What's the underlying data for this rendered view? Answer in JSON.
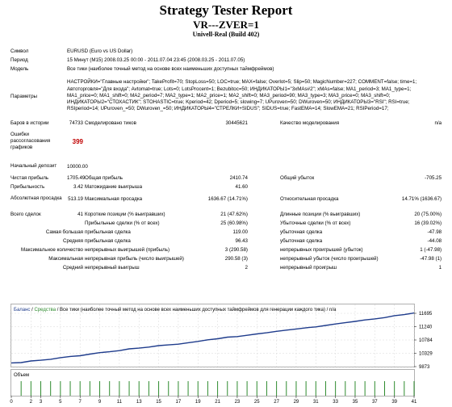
{
  "header": {
    "title": "Strategy Tester Report",
    "expert": "VR---ZVER=1",
    "server": "Univell-Real (Build 402)"
  },
  "report": {
    "symbol_label": "Символ",
    "symbol_value": "EURUSD (Euro vs US Dollar)",
    "period_label": "Период",
    "period_value": "15 Минут (M15) 2008.03.25 00:00 - 2011.07.04 23:45 (2008.03.25 - 2011.07.05)",
    "model_label": "Модель",
    "model_value": "Все тики (наиболее точный метод на основе всех наименьших доступных таймфреймов)",
    "params_label": "Параметры",
    "params_value": "НАСТРОЙКИ=\"Главные настройки\"; TakeProfit=70; StopLoss=50; LOC=true; MAX=false; Overlot=5; Slip=50; MagicNumber=227; COMMENT=false; time=1; Автоторговля=\"Для входа\"; Avtomat=true; Lots=0; LotsProcent=1; Bezubitoc=50; ИНДИКАТОРЫ1=\"3xMAs#2\"; xMAs=false; MA1_period=3; MA1_type=1; MA1_price=0; MA1_shift=0; MA2_period=7; MA2_type=1; MA2_price=1; MA2_shift=0; MA3_period=90; MA3_type=3; MA3_price=0; MA3_shift=0; ИНДИКАТОРЫ2=\"СТОХАСТИК\"; STOHASTIC=true; Kperiod=42; Dperiod=5; slowing=7; UPuroven=50; DWuroven=50; ИНДИКАТОРЫ3=\"RSI\"; RSI=true; RSIperiod=14; UPuroven_=50; DWuroven_=50; ИНДИКАТОРЫ4=\"СТРЕЛКИ+SIDUS\"; SIDUS=true; FastEMA=14; SlowEMA=21; RSIPeriod=17;",
    "bars_label": "Баров в истории",
    "bars_value": "74733",
    "ticks_label": "Смоделировано тиков",
    "ticks_value": "30445621",
    "quality_label": "Качество моделирования",
    "quality_value": "n/a",
    "errors_label": "Ошибки рассогласования графиков",
    "errors_value": "399",
    "deposit_label": "Начальный депозит",
    "deposit_value": "10000.00",
    "net_label": "Чистая прибыль",
    "net_value": "1705.49",
    "gross_profit_label": "Общая прибыль",
    "gross_profit_value": "2410.74",
    "gross_loss_label": "Общий убыток",
    "gross_loss_value": "-705.25",
    "pf_label": "Прибыльность",
    "pf_value": "3.42",
    "expected_label": "Матожидание выигрыша",
    "expected_value": "41.60",
    "abs_dd_label": "Абсолютная просадка",
    "abs_dd_value": "513.19",
    "max_dd_label": "Максимальная просадка",
    "max_dd_value": "1636.67 (14.71%)",
    "rel_dd_label": "Относительная просадка",
    "rel_dd_value": "14.71% (1636.67)",
    "total_label": "Всего сделок",
    "total_value": "41",
    "short_label": "Короткие позиции (% выигравших)",
    "short_value": "21 (47.62%)",
    "long_label": "Длинные позиции (% выигравших)",
    "long_value": "20 (75.00%)",
    "profit_trades_label": "Прибыльные сделки (% от всех)",
    "profit_trades_value": "25 (60.98%)",
    "loss_trades_label": "Убыточные сделки (% от всех)",
    "loss_trades_value": "16 (39.02%)",
    "largest_label": "Самая большая",
    "largest_profit_label": "прибыльная сделка",
    "largest_profit_value": "119.00",
    "largest_loss_label": "убыточная сделка",
    "largest_loss_value": "-47.98",
    "average_label": "Средняя",
    "average_profit_label": "прибыльная сделка",
    "average_profit_value": "96.43",
    "average_loss_label": "убыточная сделка",
    "average_loss_value": "-44.08",
    "max_count_label": "Максимальное количество",
    "max_count_wins_label": "непрерывных выигрышей (прибыль)",
    "max_count_wins_value": "3 (290.58)",
    "max_count_losses_label": "непрерывных проигрышей (убыток)",
    "max_count_losses_value": "1 (-47.98)",
    "max_label": "Максимальная",
    "max_profit_label": "непрерывная прибыль (число выигрышей)",
    "max_profit_value": "290.58 (3)",
    "max_loss_label": "непрерывный убыток (число проигрышей)",
    "max_loss_value": "-47.98 (1)",
    "avg_label": "Средний",
    "avg_wins_label": "непрерывный выигрыш",
    "avg_wins_value": "2",
    "avg_losses_label": "непрерывный проигрыш",
    "avg_losses_value": "1"
  },
  "chart_data": {
    "type": "line",
    "legend_balance": "Баланс",
    "legend_sep": " / ",
    "legend_equity": "Средства",
    "legend_rest": " / Все тики (наиболее точный метод на основе всех наименьших доступных таймфреймов для генерации каждого тика) / n/a",
    "volume_label": "Объем",
    "y_ticks": [
      "11695",
      "11240",
      "10784",
      "10329",
      "9873"
    ],
    "x_ticks": [
      "0",
      "2",
      "3",
      "5",
      "7",
      "9",
      "11",
      "13",
      "15",
      "17",
      "19",
      "21",
      "23",
      "25",
      "27",
      "29",
      "31",
      "33",
      "35",
      "37",
      "39",
      "41"
    ],
    "xlim": [
      0,
      41
    ],
    "ylim": [
      9873,
      11695
    ],
    "balance": [
      10000,
      10010,
      10065,
      10090,
      10125,
      10180,
      10220,
      10245,
      10300,
      10350,
      10380,
      10420,
      10480,
      10505,
      10540,
      10590,
      10615,
      10640,
      10690,
      10735,
      10790,
      10825,
      10880,
      10900,
      10945,
      10990,
      11030,
      11080,
      11120,
      11160,
      11200,
      11230,
      11280,
      11330,
      11375,
      11420,
      11470,
      11505,
      11550,
      11615,
      11650,
      11705
    ],
    "volume": [
      1,
      1,
      1,
      1,
      1,
      1,
      1,
      1,
      1,
      1,
      1,
      1,
      1,
      1,
      1,
      1,
      1,
      1,
      1,
      1,
      1,
      1,
      1,
      1,
      1,
      1,
      1,
      1,
      1,
      1,
      1,
      1,
      1,
      1,
      1,
      1,
      1,
      1,
      1,
      1,
      1,
      1
    ],
    "colors": {
      "balance": "#1f3c8c",
      "equity": "#2e8b2e",
      "volume": "#2e8b2e",
      "grid": "#d8d8d8"
    }
  }
}
